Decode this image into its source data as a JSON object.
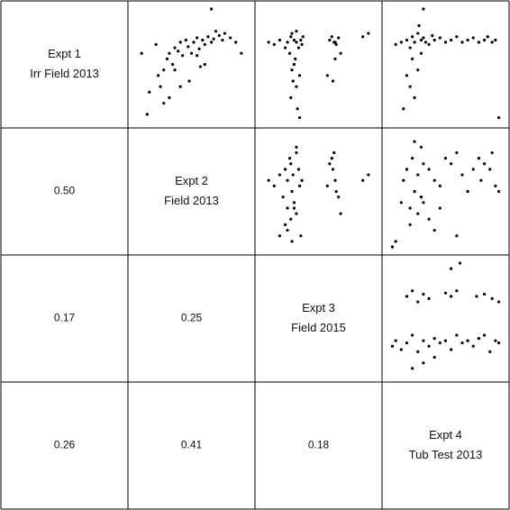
{
  "chart_data": {
    "type": "pairs",
    "variables": [
      {
        "title": "Expt 1",
        "subtitle": "Irr Field 2013"
      },
      {
        "title": "Expt 2",
        "subtitle": "Field 2013"
      },
      {
        "title": "Expt 3",
        "subtitle": "Field 2015"
      },
      {
        "title": "Expt 4",
        "subtitle": "Tub Test 2013"
      }
    ],
    "xlim": [
      0,
      100
    ],
    "ylim": [
      0,
      100
    ],
    "color": "#000000",
    "panels": [
      {
        "correlation": {
          "value": 0.5,
          "label": "0.50"
        },
        "x": [
          5,
          12,
          18,
          22,
          25,
          28,
          30,
          33,
          35,
          38,
          40,
          42,
          45,
          47,
          50,
          52,
          55,
          57,
          60,
          62,
          65,
          68,
          70,
          72,
          75,
          78,
          80,
          85,
          90,
          95,
          20,
          35,
          48,
          55,
          62,
          30,
          40,
          58,
          10,
          25,
          68
        ],
        "y": [
          60,
          25,
          68,
          30,
          45,
          55,
          60,
          50,
          65,
          62,
          70,
          58,
          72,
          66,
          60,
          70,
          74,
          64,
          72,
          68,
          75,
          70,
          73,
          80,
          76,
          72,
          78,
          74,
          70,
          60,
          40,
          45,
          35,
          58,
          50,
          20,
          30,
          48,
          5,
          15,
          100
        ]
      },
      {
        "correlation": 0.17,
        "x": [
          5,
          10,
          15,
          20,
          22,
          25,
          26,
          28,
          30,
          30,
          32,
          34,
          35,
          36,
          28,
          27,
          25,
          33,
          31,
          29,
          60,
          62,
          64,
          66,
          68,
          70,
          58,
          63,
          65,
          90,
          95,
          24,
          30,
          26,
          33,
          65
        ],
        "y": [
          70,
          68,
          72,
          65,
          70,
          75,
          78,
          72,
          80,
          70,
          65,
          72,
          68,
          75,
          50,
          35,
          20,
          40,
          10,
          55,
          72,
          75,
          70,
          68,
          74,
          60,
          40,
          35,
          55,
          75,
          78,
          60,
          30,
          45,
          2,
          70
        ]
      },
      {
        "correlation": 0.26,
        "x": [
          5,
          10,
          15,
          18,
          20,
          22,
          25,
          28,
          30,
          32,
          35,
          38,
          40,
          45,
          50,
          55,
          60,
          65,
          70,
          75,
          80,
          85,
          88,
          92,
          95,
          15,
          18,
          20,
          22,
          25,
          12,
          28,
          98,
          26,
          30
        ],
        "y": [
          68,
          70,
          72,
          65,
          75,
          70,
          78,
          72,
          74,
          70,
          68,
          76,
          72,
          74,
          70,
          72,
          75,
          70,
          72,
          74,
          70,
          72,
          75,
          70,
          72,
          40,
          30,
          55,
          20,
          45,
          10,
          60,
          2,
          85,
          100
        ]
      },
      {
        "correlation": 0.25,
        "x": [
          5,
          10,
          15,
          18,
          20,
          22,
          24,
          25,
          26,
          27,
          28,
          30,
          30,
          32,
          33,
          35,
          20,
          22,
          25,
          28,
          30,
          34,
          60,
          62,
          63,
          65,
          66,
          68,
          70,
          64,
          58,
          90,
          95,
          26,
          15,
          22
        ],
        "y": [
          60,
          55,
          65,
          45,
          70,
          60,
          80,
          75,
          50,
          65,
          40,
          85,
          30,
          70,
          55,
          60,
          20,
          15,
          25,
          35,
          90,
          10,
          75,
          80,
          70,
          60,
          50,
          45,
          30,
          85,
          55,
          60,
          65,
          5,
          10,
          35
        ]
      },
      {
        "correlation": 0.41,
        "x": [
          2,
          5,
          10,
          12,
          15,
          18,
          20,
          22,
          25,
          28,
          30,
          35,
          40,
          45,
          50,
          55,
          60,
          65,
          70,
          75,
          80,
          82,
          85,
          90,
          92,
          95,
          98,
          18,
          25,
          30,
          35,
          40,
          45,
          22,
          28,
          60
        ],
        "y": [
          0,
          5,
          40,
          60,
          70,
          35,
          80,
          50,
          65,
          45,
          75,
          70,
          60,
          55,
          80,
          75,
          85,
          65,
          50,
          70,
          80,
          60,
          75,
          70,
          85,
          55,
          50,
          20,
          30,
          40,
          25,
          15,
          35,
          95,
          90,
          10
        ]
      },
      {
        "correlation": 0.18,
        "x": [
          2,
          5,
          10,
          15,
          20,
          25,
          30,
          35,
          40,
          45,
          50,
          55,
          60,
          65,
          70,
          75,
          80,
          85,
          90,
          95,
          98,
          15,
          20,
          25,
          30,
          35,
          50,
          55,
          60,
          78,
          85,
          92,
          98,
          30,
          55,
          63,
          20,
          40
        ],
        "y": [
          25,
          30,
          22,
          28,
          35,
          20,
          30,
          25,
          32,
          28,
          30,
          22,
          35,
          28,
          30,
          25,
          32,
          35,
          20,
          30,
          28,
          70,
          75,
          65,
          72,
          68,
          73,
          70,
          75,
          70,
          72,
          68,
          65,
          10,
          95,
          100,
          5,
          15
        ]
      }
    ]
  }
}
